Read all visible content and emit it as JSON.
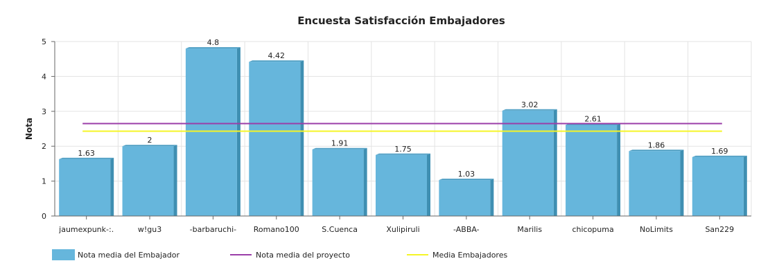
{
  "chart_data": {
    "type": "bar",
    "title": "Encuesta Satisfacción Embajadores",
    "xlabel": "",
    "ylabel": "Nota",
    "ylim": [
      0,
      5
    ],
    "yticks": [
      "0",
      "1",
      "2",
      "3",
      "4",
      "5"
    ],
    "grid": true,
    "categories": [
      "jaumexpunk-:.",
      "w!gu3",
      "-barbaruchi-",
      "Romano100",
      "S.Cuenca",
      "Xulipiruli",
      "-ABBA-",
      "Marilis",
      "chicopuma",
      "NoLimits",
      "San229"
    ],
    "series": [
      {
        "name": "Nota media del Embajador",
        "type": "bar",
        "values": [
          1.63,
          2,
          4.8,
          4.42,
          1.91,
          1.75,
          1.03,
          3.02,
          2.61,
          1.86,
          1.69
        ],
        "labels": [
          "1.63",
          "2",
          "4.8",
          "4.42",
          "1.91",
          "1.75",
          "1.03",
          "3.02",
          "2.61",
          "1.86",
          "1.69"
        ],
        "color": "#66b6dc",
        "side_color": "#3f8fb2"
      },
      {
        "name": "Nota media del proyecto",
        "type": "hline",
        "value": 2.65,
        "color": "#9b3ea8"
      },
      {
        "name": "Media Embajadores",
        "type": "hline",
        "value": 2.43,
        "color": "#f5f526"
      }
    ],
    "legend_position": "bottom"
  }
}
